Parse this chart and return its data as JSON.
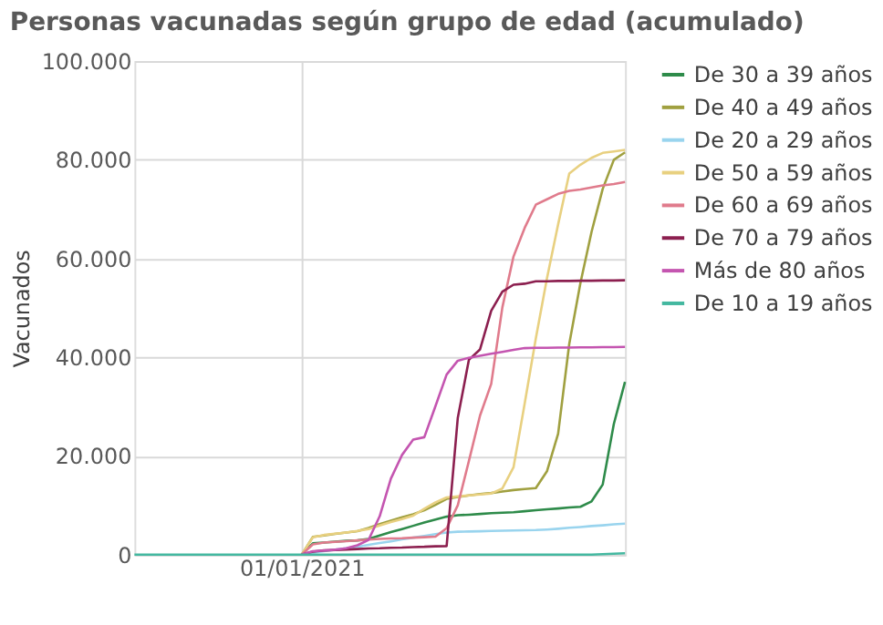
{
  "chart_data": {
    "type": "line",
    "title": "Personas vacunadas según grupo de edad (acumulado)",
    "ylabel": "Vacunados",
    "categories": [
      null,
      null,
      null,
      null,
      null,
      null,
      null,
      null,
      null,
      null,
      null,
      null,
      null,
      null,
      null,
      "01/01/2021",
      null,
      null,
      null,
      null,
      null,
      null,
      null,
      null,
      null,
      null,
      null,
      null,
      null,
      null,
      null,
      null,
      null,
      null,
      null,
      null,
      null,
      null,
      null,
      null,
      null,
      null,
      null,
      null,
      null
    ],
    "ylim": [
      0,
      100000
    ],
    "yticks": [
      {
        "value": 0,
        "label": "0"
      },
      {
        "value": 20000,
        "label": "20.000"
      },
      {
        "value": 40000,
        "label": "40.000"
      },
      {
        "value": 60000,
        "label": "60.000"
      },
      {
        "value": 80000,
        "label": "80.000"
      },
      {
        "value": 100000,
        "label": "100.000"
      }
    ],
    "grid": true,
    "legend": "right",
    "marker": "none",
    "line_style": "solid",
    "series": [
      {
        "name": "De 30 a 39 años",
        "color": "#2e8b4a",
        "values": [
          null,
          null,
          null,
          null,
          null,
          null,
          null,
          null,
          null,
          null,
          null,
          null,
          null,
          null,
          null,
          0,
          2300,
          2450,
          2650,
          2800,
          2900,
          3200,
          3900,
          4600,
          5200,
          5850,
          6500,
          7100,
          7700,
          8000,
          8100,
          8250,
          8400,
          8500,
          8600,
          8800,
          9000,
          9200,
          9350,
          9550,
          9700,
          10800,
          14200,
          26500,
          35000
        ]
      },
      {
        "name": "De 40 a 49 años",
        "color": "#a0a040",
        "values": [
          null,
          null,
          null,
          null,
          null,
          null,
          null,
          null,
          null,
          null,
          null,
          null,
          null,
          null,
          null,
          0,
          3600,
          3900,
          4200,
          4500,
          4750,
          5400,
          6200,
          6900,
          7600,
          8200,
          9000,
          10100,
          11300,
          11700,
          12000,
          12300,
          12500,
          12800,
          13100,
          13300,
          13500,
          16900,
          24500,
          42700,
          55000,
          65400,
          74100,
          80000,
          81500
        ]
      },
      {
        "name": "De 20 a 29 años",
        "color": "#99d4ee",
        "values": [
          null,
          null,
          null,
          null,
          null,
          null,
          null,
          null,
          null,
          null,
          null,
          null,
          null,
          null,
          null,
          0,
          380,
          700,
          1000,
          1300,
          1600,
          2000,
          2350,
          2700,
          3100,
          3450,
          3800,
          4150,
          4500,
          4650,
          4700,
          4750,
          4800,
          4850,
          4900,
          4950,
          5000,
          5100,
          5250,
          5450,
          5600,
          5800,
          5950,
          6150,
          6300
        ]
      },
      {
        "name": "De 50 a 59 años",
        "color": "#e8d080",
        "values": [
          null,
          null,
          null,
          null,
          null,
          null,
          null,
          null,
          null,
          null,
          null,
          null,
          null,
          null,
          null,
          0,
          3500,
          4000,
          4250,
          4500,
          4800,
          5200,
          5900,
          6600,
          7200,
          7900,
          9300,
          10600,
          11600,
          11800,
          12000,
          12200,
          12400,
          13400,
          17700,
          30600,
          43800,
          56000,
          66900,
          77200,
          79000,
          80400,
          81400,
          81700,
          82000
        ]
      },
      {
        "name": "De 60 a 69 años",
        "color": "#e07b8c",
        "values": [
          null,
          null,
          null,
          null,
          null,
          null,
          null,
          null,
          null,
          null,
          null,
          null,
          null,
          null,
          null,
          0,
          2100,
          2450,
          2600,
          2750,
          2900,
          3050,
          3200,
          3300,
          3350,
          3450,
          3550,
          3650,
          5350,
          10000,
          19000,
          28200,
          34600,
          50100,
          60400,
          66200,
          70900,
          72000,
          73100,
          73700,
          74000,
          74400,
          74800,
          75100,
          75500
        ]
      },
      {
        "name": "De 70 a 79 años",
        "color": "#8c1f4f",
        "values": [
          null,
          null,
          null,
          null,
          null,
          null,
          null,
          null,
          null,
          null,
          null,
          null,
          null,
          null,
          null,
          0,
          600,
          870,
          950,
          1050,
          1150,
          1250,
          1300,
          1400,
          1450,
          1550,
          1600,
          1700,
          1750,
          27700,
          39500,
          41600,
          49400,
          53300,
          54700,
          54900,
          55400,
          55400,
          55450,
          55450,
          55500,
          55500,
          55550,
          55550,
          55600
        ]
      },
      {
        "name": "Más de 80 años",
        "color": "#c455b0",
        "values": [
          null,
          null,
          null,
          null,
          null,
          null,
          null,
          null,
          null,
          null,
          null,
          null,
          null,
          null,
          null,
          0,
          700,
          850,
          1000,
          1300,
          1900,
          3000,
          7800,
          15400,
          20200,
          23300,
          23800,
          30100,
          36500,
          39300,
          39900,
          40300,
          40700,
          41100,
          41500,
          41850,
          41900,
          41900,
          41950,
          41950,
          42000,
          42000,
          42050,
          42050,
          42100
        ]
      },
      {
        "name": "De 10 a 19 años",
        "color": "#44b8a0",
        "values": [
          0,
          0,
          0,
          0,
          0,
          0,
          0,
          0,
          0,
          0,
          0,
          0,
          0,
          0,
          0,
          0,
          0,
          0,
          0,
          0,
          0,
          0,
          0,
          0,
          0,
          0,
          0,
          0,
          0,
          0,
          0,
          0,
          0,
          0,
          0,
          0,
          0,
          0,
          0,
          0,
          0,
          0,
          100,
          200,
          300
        ]
      }
    ]
  }
}
